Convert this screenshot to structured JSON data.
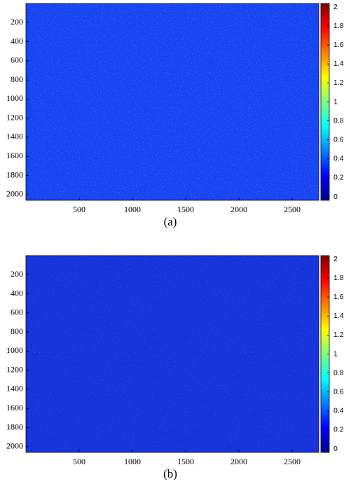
{
  "chart_data": [
    {
      "type": "heatmap",
      "caption": "(a)",
      "colormap": "jet",
      "xlim": [
        0,
        2750
      ],
      "xticks": [
        500,
        1000,
        1500,
        2000,
        2500
      ],
      "ylim": [
        2060,
        0
      ],
      "yticks": [
        200,
        400,
        600,
        800,
        1000,
        1200,
        1400,
        1600,
        1800,
        2000
      ],
      "clim": [
        0,
        2
      ],
      "cticks": [
        0,
        0.2,
        0.4,
        0.6,
        0.8,
        1,
        1.2,
        1.4,
        1.6,
        1.8,
        2
      ]
    },
    {
      "type": "heatmap",
      "caption": "(b)",
      "colormap": "jet",
      "xlim": [
        0,
        2750
      ],
      "xticks": [
        500,
        1000,
        1500,
        2000,
        2500
      ],
      "ylim": [
        2060,
        0
      ],
      "yticks": [
        200,
        400,
        600,
        800,
        1000,
        1200,
        1400,
        1600,
        1800,
        2000
      ],
      "clim": [
        0,
        2
      ],
      "cticks": [
        0,
        0.2,
        0.4,
        0.6,
        0.8,
        1,
        1.2,
        1.4,
        1.6,
        1.8,
        2
      ]
    }
  ]
}
